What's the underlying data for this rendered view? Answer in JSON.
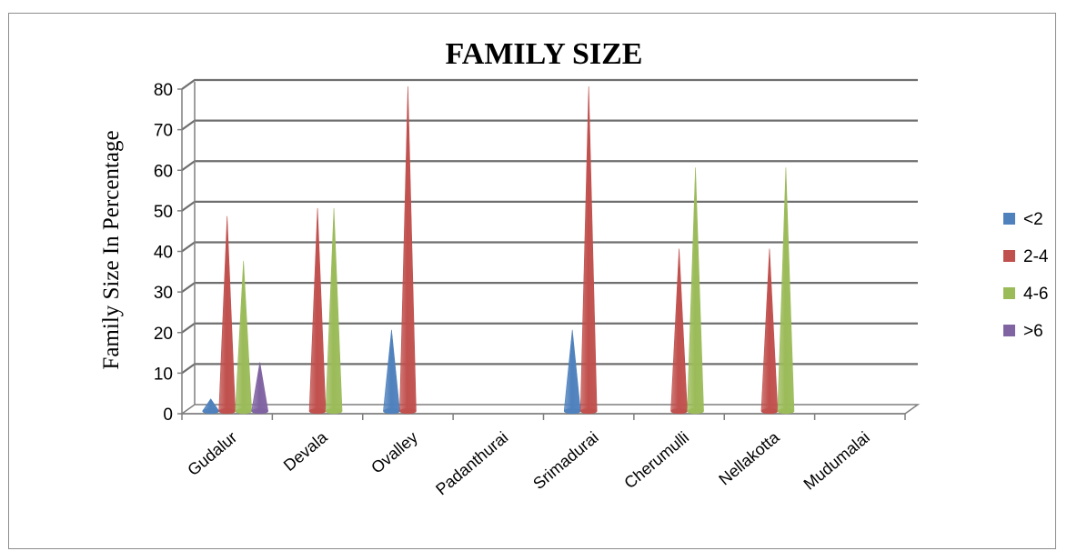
{
  "chart_data": {
    "type": "bar",
    "style": "3d-cone",
    "title": "FAMILY SIZE",
    "ylabel": "Family Size In Percentage",
    "xlabel": "",
    "ylim": [
      0,
      80
    ],
    "yticks": [
      "0",
      "10",
      "20",
      "30",
      "40",
      "50",
      "60",
      "70",
      "80"
    ],
    "grid": true,
    "legend_position": "right",
    "categories": [
      "Gudalur",
      "Devala",
      "Ovalley",
      "Padanthurai",
      "Srimadurai",
      "Cherumulli",
      "Nellakotta",
      "Mudumalai"
    ],
    "series": [
      {
        "name": "<2",
        "color": "#4f81bd",
        "values": [
          3,
          0,
          20,
          0,
          20,
          0,
          0,
          0
        ]
      },
      {
        "name": "2-4",
        "color": "#c0504d",
        "values": [
          48,
          50,
          80,
          0,
          80,
          40,
          40,
          0
        ]
      },
      {
        "name": "4-6",
        "color": "#9bbb59",
        "values": [
          37,
          50,
          0,
          0,
          0,
          60,
          60,
          0
        ]
      },
      {
        "name": ">6",
        "color": "#8064a2",
        "values": [
          12,
          0,
          0,
          0,
          0,
          0,
          0,
          0
        ]
      }
    ]
  }
}
